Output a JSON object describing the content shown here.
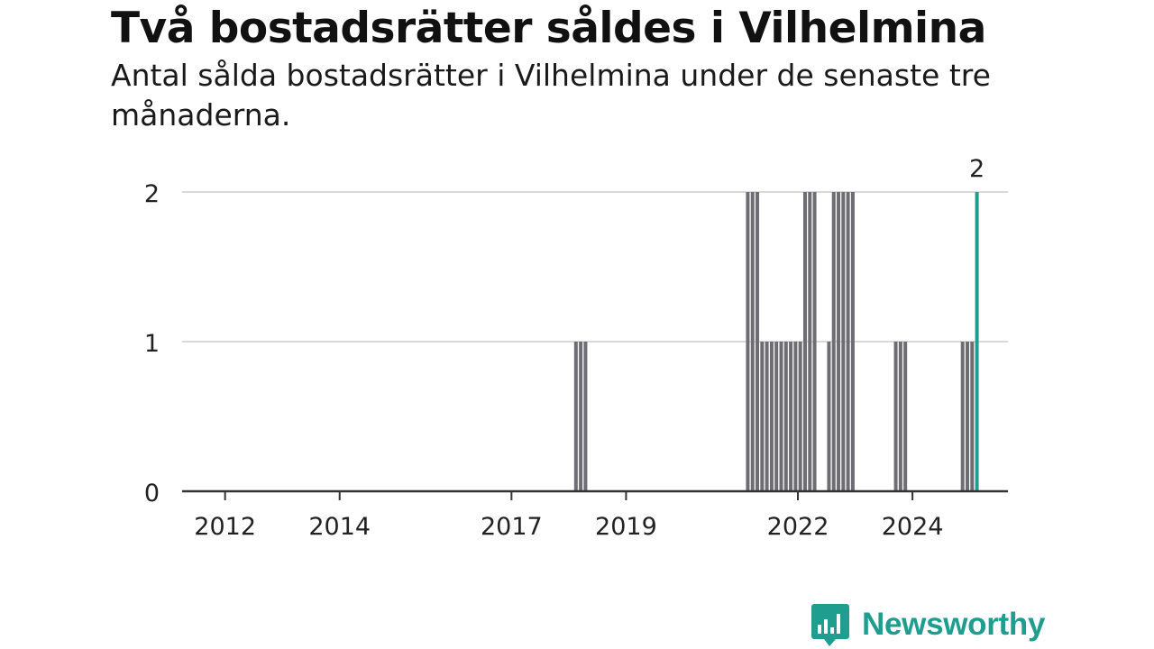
{
  "title": "Två bostadsrätter såldes i Vilhelmina",
  "subtitle": "Antal sålda bostadsrätter i Vilhelmina under de senaste tre månaderna.",
  "brand": {
    "name": "Newsworthy",
    "icon": "bar-chart-speech-bubble-icon",
    "color": "#1f9d8f"
  },
  "chart_data": {
    "type": "bar",
    "title": "Två bostadsrätter såldes i Vilhelmina",
    "subtitle": "Antal sålda bostadsrätter i Vilhelmina under de senaste tre månaderna.",
    "xlabel": "",
    "ylabel": "",
    "ylim": [
      0,
      2
    ],
    "yticks": [
      0,
      1,
      2
    ],
    "xlim": [
      "2011-04",
      "2025-09"
    ],
    "xticks": [
      "2012",
      "2014",
      "2017",
      "2019",
      "2022",
      "2024"
    ],
    "grid": true,
    "bar_color": "#6e6d73",
    "highlight_color": "#1f9d8f",
    "highlight_label": "2",
    "series": [
      {
        "x": [
          "2018-02",
          "2018-03",
          "2018-04",
          "2021-02",
          "2021-03",
          "2021-04",
          "2021-05",
          "2021-06",
          "2021-07",
          "2021-08",
          "2021-09",
          "2021-10",
          "2021-11",
          "2021-12",
          "2022-01",
          "2022-02",
          "2022-03",
          "2022-04",
          "2022-07",
          "2022-08",
          "2022-09",
          "2022-10",
          "2022-11",
          "2022-12",
          "2023-09",
          "2023-10",
          "2023-11",
          "2024-11",
          "2024-12",
          "2025-01",
          "2025-02"
        ],
        "values": [
          1,
          1,
          1,
          2,
          2,
          2,
          1,
          1,
          1,
          1,
          1,
          1,
          1,
          1,
          1,
          2,
          2,
          2,
          1,
          2,
          2,
          2,
          2,
          2,
          1,
          1,
          1,
          1,
          1,
          1,
          2
        ]
      }
    ]
  }
}
